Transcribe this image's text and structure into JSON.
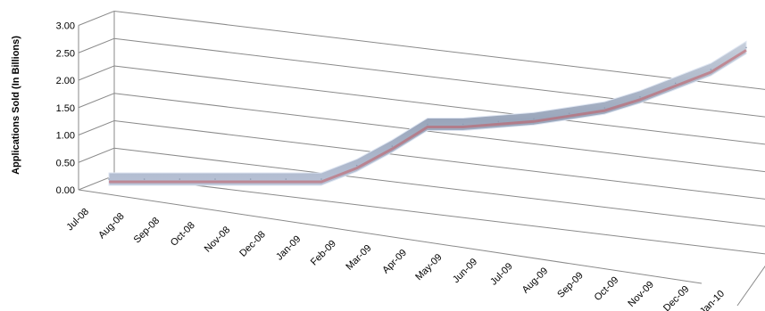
{
  "chart_data": {
    "type": "area",
    "view": "3d",
    "title": "",
    "xlabel": "",
    "ylabel": "Applications Sold (In Billions)",
    "ylim": [
      0,
      3
    ],
    "yticks": [
      "0.00",
      "0.50",
      "1.00",
      "1.50",
      "2.00",
      "2.50",
      "3.00"
    ],
    "categories": [
      "Jul-08",
      "Aug-08",
      "Sep-08",
      "Oct-08",
      "Nov-08",
      "Dec-08",
      "Jan-09",
      "Feb-09",
      "Mar-09",
      "Apr-09",
      "May-09",
      "Jun-09",
      "Jul-09",
      "Aug-09",
      "Sep-09",
      "Oct-09",
      "Nov-09",
      "Dec-09",
      "Jan-10"
    ],
    "values": [
      0.0,
      0.0,
      0.0,
      0.0,
      0.0,
      0.0,
      0.0,
      0.25,
      0.6,
      1.0,
      1.0,
      1.05,
      1.1,
      1.2,
      1.3,
      1.5,
      1.75,
      2.0,
      2.4
    ],
    "grid": true,
    "legend": "none",
    "colors": {
      "ribbon": "#a8b4c8",
      "ribbon_shade": "#c25a60",
      "edge": "#dfe6f2",
      "grid": "#8a8a8a"
    }
  }
}
